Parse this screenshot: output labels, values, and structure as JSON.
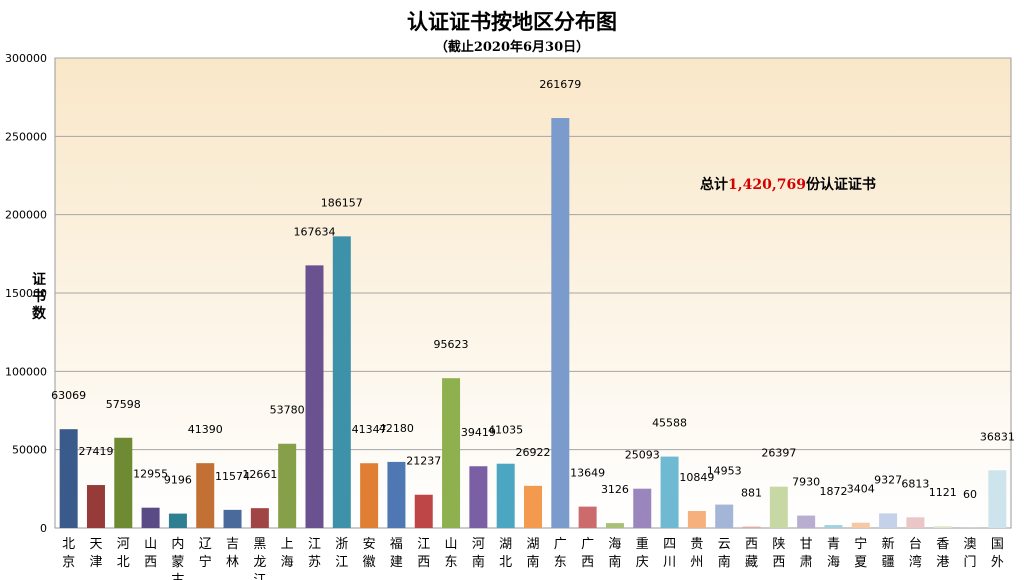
{
  "chart_data": {
    "type": "bar",
    "title": "认证证书按地区分布图",
    "subtitle": "（截止2020年6月30日）",
    "ylabel": "证书数",
    "xlabel": "",
    "ylim": [
      0,
      300000
    ],
    "yticks": [
      0,
      50000,
      100000,
      150000,
      200000,
      250000,
      300000
    ],
    "grid": true,
    "total_prefix": "总计",
    "total_value": "1,420,769",
    "total_suffix": "份认证证书",
    "categories": [
      "北京",
      "天津",
      "河北",
      "山西",
      "内蒙古",
      "辽宁",
      "吉林",
      "黑龙江",
      "上海",
      "江苏",
      "浙江",
      "安徽",
      "福建",
      "江西",
      "山东",
      "河南",
      "湖北",
      "湖南",
      "广东",
      "广西",
      "海南",
      "重庆",
      "四川",
      "贵州",
      "云南",
      "西藏",
      "陕西",
      "甘肃",
      "青海",
      "宁夏",
      "新疆",
      "台湾",
      "香港",
      "澳门",
      "国外"
    ],
    "values": [
      63069,
      27419,
      57598,
      12955,
      9196,
      41390,
      11574,
      12661,
      53780,
      167634,
      186157,
      41347,
      42180,
      21237,
      95623,
      39419,
      41035,
      26922,
      261679,
      13649,
      3126,
      25093,
      45588,
      10849,
      14953,
      881,
      26397,
      7930,
      1872,
      3404,
      9327,
      6813,
      1121,
      60,
      36831
    ],
    "colors": [
      "#3a5a8c",
      "#963a3a",
      "#6e8a33",
      "#5a4a85",
      "#2f7f93",
      "#c27033",
      "#4a6a9c",
      "#a04444",
      "#86a04a",
      "#6a5190",
      "#3d91a8",
      "#e07f34",
      "#4f77b4",
      "#bf4646",
      "#8fb04f",
      "#7a5fa5",
      "#4ba6c2",
      "#f39a4e",
      "#7b9bcc",
      "#cc6b6b",
      "#a8c177",
      "#9a86bd",
      "#6fbad2",
      "#f6b07d",
      "#a4b6d8",
      "#e3a8a8",
      "#c8d8a4",
      "#b9aed0",
      "#a4d1df",
      "#f6c9a6",
      "#c5d1e8",
      "#eac6c6",
      "#dde6cd",
      "#d9d3e6",
      "#cde4ec"
    ]
  }
}
